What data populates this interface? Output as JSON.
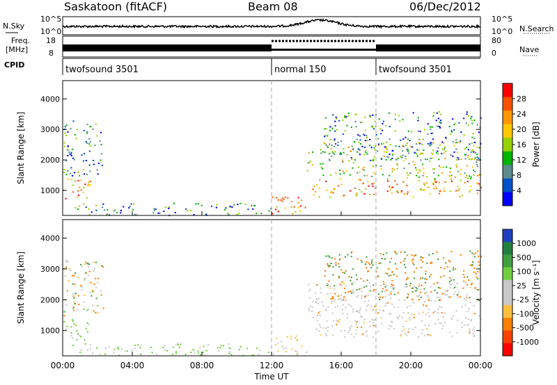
{
  "header": {
    "title": "Saskatoon (fitACF)",
    "beam": "Beam 08",
    "date": "06/Dec/2012"
  },
  "summary": {
    "nsky_label": "N.Sky",
    "nsearch_label": "N.Search",
    "freq_label": "Freq.",
    "freq_unit": "[MHz]",
    "nave_label": "Nave",
    "cpid_label": "CPID",
    "nsky_ticks": [
      "10^5",
      "10^0"
    ],
    "nsearch_ticks": [
      "10^5",
      "10^0"
    ],
    "freq_ticks": [
      "18",
      "8"
    ],
    "nave_ticks": [
      "80",
      "0"
    ],
    "cpid_segments": [
      {
        "start": 0,
        "end": 12,
        "label": "twofsound 3501"
      },
      {
        "start": 12,
        "end": 18,
        "label": "normal 150"
      },
      {
        "start": 18,
        "end": 24,
        "label": "twofsound 3501"
      }
    ]
  },
  "chart_data": {
    "type": "heatmap",
    "x_label": "Time UT",
    "x_ticks": [
      "00:00",
      "04:00",
      "08:00",
      "12:00",
      "16:00",
      "20:00",
      "00:00"
    ],
    "x_range_hours": [
      0,
      24
    ],
    "vertical_markers_hours": [
      12,
      18
    ],
    "panels": [
      {
        "name": "power",
        "ylabel": "Slant Range [km]",
        "yticks": [
          1000,
          2000,
          3000,
          4000
        ],
        "ylim": [
          180,
          4600
        ],
        "colorbar_label": "Power [dB]",
        "colorbar_ticks": [
          "28",
          "24",
          "20",
          "16",
          "12",
          "8",
          "4"
        ],
        "colors": [
          "#ff0000",
          "#ff5000",
          "#ff9600",
          "#ffc800",
          "#96d200",
          "#00b400",
          "#5a8c8c",
          "#0050c8",
          "#0000ff"
        ]
      },
      {
        "name": "velocity",
        "ylabel": "Slant Range [km]",
        "yticks": [
          1000,
          2000,
          3000,
          4000
        ],
        "ylim": [
          180,
          4600
        ],
        "colorbar_label": "Velocity [m s⁻¹]",
        "colorbar_ticks": [
          "1000",
          "500",
          "100",
          "25",
          "-25",
          "-100",
          "-500",
          "-1000"
        ],
        "colors": [
          "#2040c0",
          "#208040",
          "#40a040",
          "#70d040",
          "#c8c8c8",
          "#c8c8c8",
          "#ffc040",
          "#ff8000",
          "#ff4000",
          "#ff0000"
        ]
      }
    ],
    "scatter_regions": [
      {
        "t": [
          0.0,
          1.6
        ],
        "r": [
          700,
          1400
        ],
        "power": "high",
        "velocity": "low-pos"
      },
      {
        "t": [
          0.0,
          2.3
        ],
        "r": [
          1500,
          3300
        ],
        "power": "low",
        "velocity": "mixed"
      },
      {
        "t": [
          0.5,
          12.0
        ],
        "r": [
          200,
          600
        ],
        "power": "low",
        "velocity": "low-pos"
      },
      {
        "t": [
          12.0,
          14.0
        ],
        "r": [
          250,
          850
        ],
        "power": "high",
        "velocity": "low-neg"
      },
      {
        "t": [
          14.3,
          24.0
        ],
        "r": [
          800,
          1400
        ],
        "power": "high",
        "velocity": "near-zero"
      },
      {
        "t": [
          14.0,
          24.0
        ],
        "r": [
          1400,
          2600
        ],
        "power": "medium",
        "velocity": "near-zero"
      },
      {
        "t": [
          15.0,
          24.0
        ],
        "r": [
          2000,
          3600
        ],
        "power": "low",
        "velocity": "neg"
      }
    ]
  }
}
